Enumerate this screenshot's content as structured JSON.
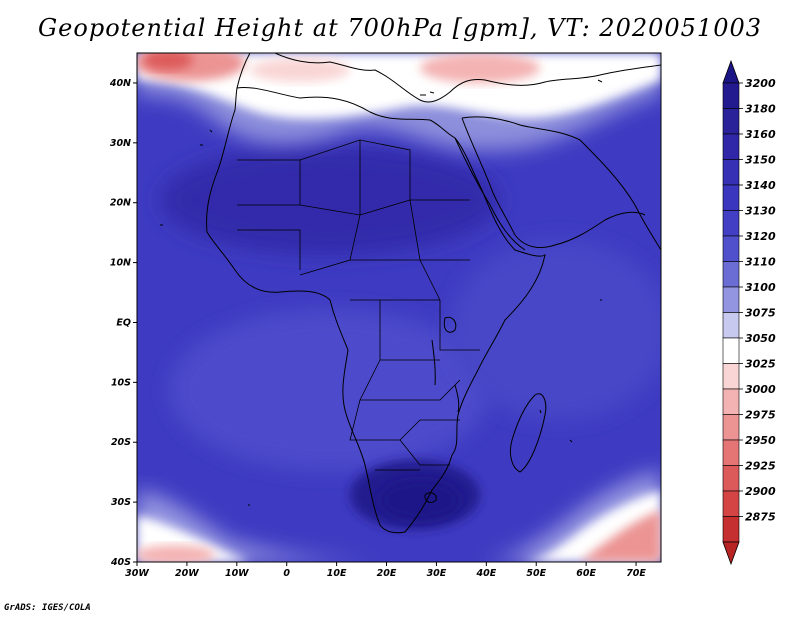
{
  "title": "Geopotential Height at 700hPa [gpm], VT: 2020051003",
  "credit": "GrADS: IGES/COLA",
  "map": {
    "lon_range": [
      -30,
      75
    ],
    "lat_range": [
      -40,
      45
    ],
    "lon_ticks": [
      {
        "value": -30,
        "label": "30W"
      },
      {
        "value": -20,
        "label": "20W"
      },
      {
        "value": -10,
        "label": "10W"
      },
      {
        "value": 0,
        "label": "0"
      },
      {
        "value": 10,
        "label": "10E"
      },
      {
        "value": 20,
        "label": "20E"
      },
      {
        "value": 30,
        "label": "30E"
      },
      {
        "value": 40,
        "label": "40E"
      },
      {
        "value": 50,
        "label": "50E"
      },
      {
        "value": 60,
        "label": "60E"
      },
      {
        "value": 70,
        "label": "70E"
      }
    ],
    "lat_ticks": [
      {
        "value": 40,
        "label": "40N"
      },
      {
        "value": 30,
        "label": "30N"
      },
      {
        "value": 20,
        "label": "20N"
      },
      {
        "value": 10,
        "label": "10N"
      },
      {
        "value": 0,
        "label": "EQ"
      },
      {
        "value": -10,
        "label": "10S"
      },
      {
        "value": -20,
        "label": "20S"
      },
      {
        "value": -30,
        "label": "30S"
      },
      {
        "value": -40,
        "label": "40S"
      }
    ]
  },
  "colorbar": {
    "levels": [
      {
        "label": "3200",
        "color": "#241a8f"
      },
      {
        "label": "3180",
        "color": "#2a2299"
      },
      {
        "label": "3160",
        "color": "#3027a8"
      },
      {
        "label": "3150",
        "color": "#3630b5"
      },
      {
        "label": "3140",
        "color": "#3a36bd"
      },
      {
        "label": "3130",
        "color": "#423fc5"
      },
      {
        "label": "3120",
        "color": "#5150cc"
      },
      {
        "label": "3110",
        "color": "#6c6dd4"
      },
      {
        "label": "3100",
        "color": "#9495e0"
      },
      {
        "label": "3075",
        "color": "#c8c9ee"
      },
      {
        "label": "3050",
        "color": "#ffffff"
      },
      {
        "label": "3025",
        "color": "#f9d5d5"
      },
      {
        "label": "3000",
        "color": "#f4b3b3"
      },
      {
        "label": "2975",
        "color": "#ec9494"
      },
      {
        "label": "2950",
        "color": "#e57474"
      },
      {
        "label": "2925",
        "color": "#dd5a5a"
      },
      {
        "label": "2900",
        "color": "#d44444"
      },
      {
        "label": "2875",
        "color": "#c62f2f"
      }
    ],
    "top_color": "#1c1585",
    "bottom_color": "#b82424"
  },
  "colors": {
    "background_field": "#3e3bc2",
    "coast": "#000000"
  }
}
